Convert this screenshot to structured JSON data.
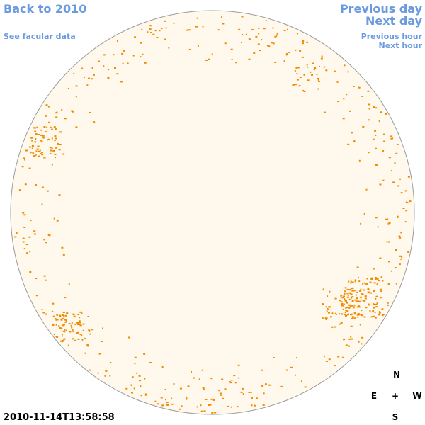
{
  "nav": {
    "back": "Back to 2010",
    "facular": "See facular data",
    "previous_day": "Previous day",
    "next_day": "Next day",
    "previous_hour": "Previous hour",
    "next_hour": "Next hour"
  },
  "timestamp": "2010-11-14T13:58:58",
  "compass": {
    "north": "N",
    "east": "E",
    "center": "+",
    "west": "W",
    "south": "S"
  }
}
